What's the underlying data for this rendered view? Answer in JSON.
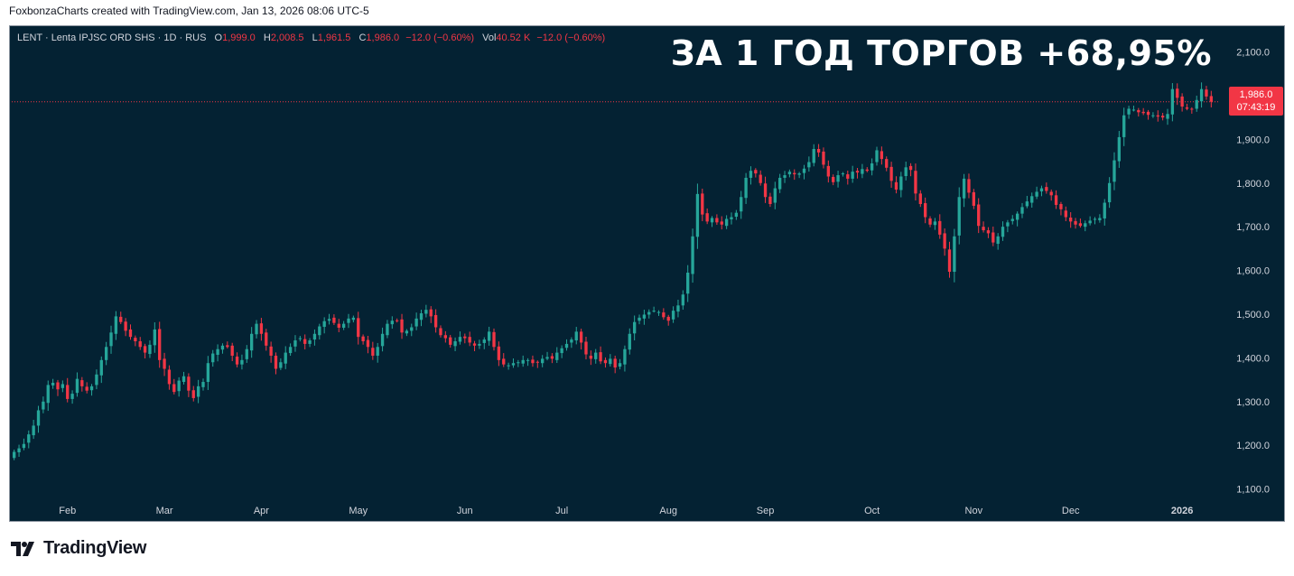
{
  "credit": "FoxbonzaCharts created with TradingView.com, Jan 13, 2026 08:06 UTC-5",
  "legend": {
    "symbol": "LENT · Lenta IPJSC ORD SHS · 1D · RUS",
    "o_label": "O",
    "o_value": "1,999.0",
    "h_label": "H",
    "h_value": "2,008.5",
    "l_label": "L",
    "l_value": "1,961.5",
    "c_label": "C",
    "c_value": "1,986.0",
    "change": "−12.0 (−0.60%)",
    "vol_label": "Vol",
    "vol_value": "40.52 K",
    "vol_change": "−12.0 (−0.60%)"
  },
  "headline": "ЗА 1 ГОД ТОРГОВ +68,95%",
  "price_tag": {
    "price": "1,986.0",
    "countdown": "07:43:19"
  },
  "logo_text": "TradingView",
  "colors": {
    "background": "#042233",
    "up": "#26a69a",
    "down": "#f23645",
    "axis_text": "#d1d4dc"
  },
  "chart_data": {
    "type": "candlestick",
    "title": "",
    "ylim": [
      1060,
      2130
    ],
    "y_ticks": [
      "2,100.0",
      "2,000.0",
      "1,900.0",
      "1,800.0",
      "1,700.0",
      "1,600.0",
      "1,500.0",
      "1,400.0",
      "1,300.0",
      "1,200.0",
      "1,100.0"
    ],
    "y_tick_values": [
      2100,
      2000,
      1900,
      1800,
      1700,
      1600,
      1500,
      1400,
      1300,
      1200,
      1100
    ],
    "x_ticks": [
      "Feb",
      "Mar",
      "Apr",
      "May",
      "Jun",
      "Jul",
      "Aug",
      "Sep",
      "Oct",
      "Nov",
      "Dec",
      "2026"
    ],
    "x_tick_index": [
      11,
      31,
      51,
      71,
      93,
      113,
      135,
      155,
      177,
      198,
      218,
      241
    ],
    "last_price": 1986.0,
    "series": {
      "close": [
        1185,
        1193,
        1203,
        1225,
        1245,
        1280,
        1300,
        1338,
        1343,
        1328,
        1340,
        1306,
        1318,
        1352,
        1335,
        1325,
        1335,
        1362,
        1395,
        1425,
        1458,
        1495,
        1482,
        1462,
        1448,
        1438,
        1425,
        1412,
        1430,
        1465,
        1395,
        1375,
        1340,
        1322,
        1348,
        1358,
        1325,
        1308,
        1335,
        1345,
        1388,
        1410,
        1420,
        1428,
        1425,
        1405,
        1385,
        1395,
        1420,
        1455,
        1478,
        1455,
        1428,
        1405,
        1375,
        1390,
        1412,
        1425,
        1440,
        1445,
        1432,
        1440,
        1455,
        1472,
        1484,
        1489,
        1480,
        1469,
        1478,
        1490,
        1492,
        1448,
        1438,
        1425,
        1405,
        1425,
        1455,
        1478,
        1485,
        1485,
        1458,
        1462,
        1470,
        1490,
        1502,
        1510,
        1495,
        1470,
        1452,
        1445,
        1430,
        1438,
        1448,
        1445,
        1435,
        1428,
        1432,
        1442,
        1460,
        1425,
        1395,
        1385,
        1383,
        1388,
        1390,
        1395,
        1395,
        1388,
        1390,
        1398,
        1402,
        1398,
        1412,
        1422,
        1432,
        1442,
        1460,
        1435,
        1408,
        1398,
        1412,
        1392,
        1388,
        1398,
        1378,
        1388,
        1420,
        1455,
        1482,
        1492,
        1499,
        1505,
        1508,
        1505,
        1493,
        1485,
        1508,
        1520,
        1545,
        1595,
        1678,
        1775,
        1728,
        1712,
        1720,
        1710,
        1705,
        1718,
        1722,
        1732,
        1768,
        1812,
        1828,
        1822,
        1800,
        1768,
        1752,
        1788,
        1812,
        1818,
        1826,
        1820,
        1822,
        1833,
        1848,
        1878,
        1870,
        1842,
        1815,
        1802,
        1818,
        1822,
        1810,
        1826,
        1824,
        1832,
        1828,
        1845,
        1875,
        1855,
        1835,
        1805,
        1785,
        1815,
        1836,
        1830,
        1776,
        1752,
        1722,
        1705,
        1712,
        1682,
        1650,
        1597,
        1678,
        1768,
        1810,
        1778,
        1748,
        1702,
        1692,
        1685,
        1664,
        1678,
        1700,
        1710,
        1718,
        1730,
        1745,
        1758,
        1770,
        1780,
        1788,
        1782,
        1772,
        1750,
        1740,
        1722,
        1712,
        1705,
        1702,
        1708,
        1714,
        1718,
        1720,
        1755,
        1800,
        1852,
        1905,
        1955,
        1970,
        1968,
        1962,
        1960,
        1956,
        1955,
        1952,
        1950,
        1958,
        2015,
        1995,
        1975,
        1970,
        1968,
        1990,
        2015,
        1998,
        1986
      ]
    }
  }
}
